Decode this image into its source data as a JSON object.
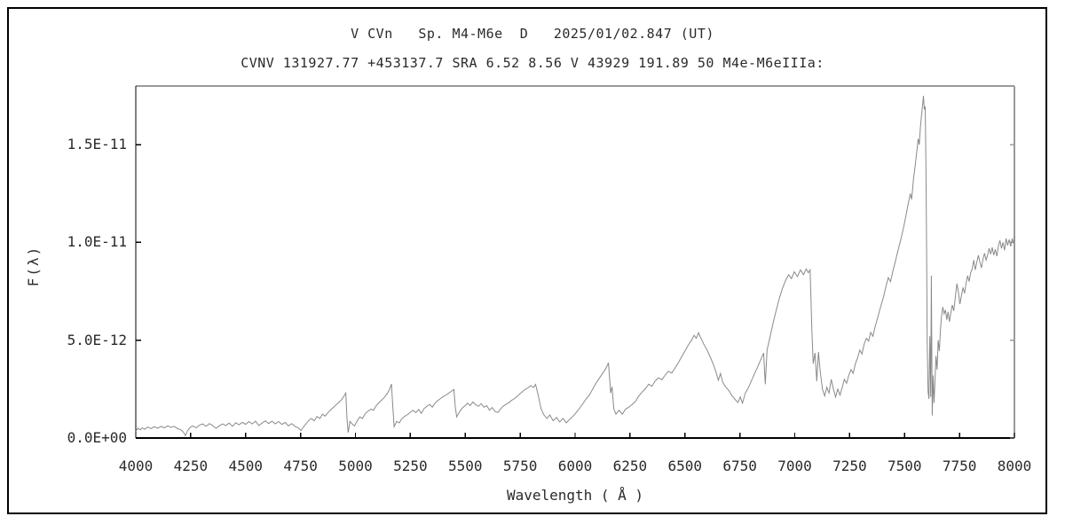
{
  "header": {
    "line1": "V CVn   Sp. M4-M6e  D   2025/01/02.847 (UT)",
    "line2": "CVNV 131927.77 +453137.7 SRA 6.52 8.56 V 43929 191.89 50 M4e-M6eIIIa:"
  },
  "colors": {
    "spectrum_line": "#8a8a8a",
    "axis_dark": "#000000",
    "axis_light": "#9a9a9a",
    "text": "#2a2a2a",
    "background": "#ffffff"
  },
  "chart_data": {
    "type": "line",
    "title": "V CVn   Sp. M4-M6e  D   2025/01/02.847 (UT)",
    "subtitle": "CVNV 131927.77 +453137.7 SRA 6.52 8.56 V 43929 191.89 50 M4e-M6eIIIa:",
    "xlabel": "Wavelength ( Å )",
    "ylabel": "F(λ)",
    "grid": false,
    "legend": "none",
    "xlim": [
      4000,
      8000
    ],
    "x_tick_step": 250,
    "x_ticks": [
      4000,
      4250,
      4500,
      4750,
      5000,
      5250,
      5500,
      5750,
      6000,
      6250,
      6500,
      6750,
      7000,
      7250,
      7500,
      7750,
      8000
    ],
    "y_ticks": [
      {
        "value_1e12": 0,
        "label": "0.0E+00"
      },
      {
        "value_1e12": 5,
        "label": "5.0E-12"
      },
      {
        "value_1e12": 10,
        "label": "1.0E-11"
      },
      {
        "value_1e12": 15,
        "label": "1.5E-11"
      }
    ],
    "ylim_1e12": [
      0,
      18
    ],
    "flux_unit_note": "flux values below are in units of 1e-12 (same scale as y-axis labels)",
    "points": [
      [
        4000,
        0.35
      ],
      [
        4010,
        0.5
      ],
      [
        4020,
        0.42
      ],
      [
        4030,
        0.52
      ],
      [
        4040,
        0.44
      ],
      [
        4055,
        0.56
      ],
      [
        4070,
        0.48
      ],
      [
        4085,
        0.58
      ],
      [
        4100,
        0.5
      ],
      [
        4115,
        0.6
      ],
      [
        4130,
        0.52
      ],
      [
        4145,
        0.62
      ],
      [
        4160,
        0.54
      ],
      [
        4175,
        0.6
      ],
      [
        4190,
        0.48
      ],
      [
        4205,
        0.42
      ],
      [
        4218,
        0.28
      ],
      [
        4226,
        0.12
      ],
      [
        4236,
        0.38
      ],
      [
        4248,
        0.55
      ],
      [
        4260,
        0.62
      ],
      [
        4275,
        0.52
      ],
      [
        4290,
        0.66
      ],
      [
        4305,
        0.72
      ],
      [
        4320,
        0.6
      ],
      [
        4335,
        0.74
      ],
      [
        4350,
        0.64
      ],
      [
        4365,
        0.5
      ],
      [
        4380,
        0.62
      ],
      [
        4395,
        0.72
      ],
      [
        4410,
        0.64
      ],
      [
        4425,
        0.76
      ],
      [
        4440,
        0.6
      ],
      [
        4455,
        0.78
      ],
      [
        4470,
        0.68
      ],
      [
        4485,
        0.8
      ],
      [
        4500,
        0.7
      ],
      [
        4515,
        0.84
      ],
      [
        4530,
        0.72
      ],
      [
        4545,
        0.86
      ],
      [
        4560,
        0.64
      ],
      [
        4575,
        0.76
      ],
      [
        4590,
        0.88
      ],
      [
        4605,
        0.74
      ],
      [
        4620,
        0.86
      ],
      [
        4635,
        0.72
      ],
      [
        4650,
        0.84
      ],
      [
        4665,
        0.7
      ],
      [
        4680,
        0.8
      ],
      [
        4695,
        0.62
      ],
      [
        4710,
        0.74
      ],
      [
        4725,
        0.6
      ],
      [
        4740,
        0.52
      ],
      [
        4752,
        0.38
      ],
      [
        4762,
        0.55
      ],
      [
        4775,
        0.72
      ],
      [
        4788,
        0.9
      ],
      [
        4800,
        1.0
      ],
      [
        4812,
        0.88
      ],
      [
        4825,
        1.1
      ],
      [
        4838,
        1.0
      ],
      [
        4850,
        1.22
      ],
      [
        4862,
        1.12
      ],
      [
        4875,
        1.3
      ],
      [
        4888,
        1.45
      ],
      [
        4900,
        1.58
      ],
      [
        4912,
        1.7
      ],
      [
        4925,
        1.82
      ],
      [
        4938,
        1.98
      ],
      [
        4948,
        2.15
      ],
      [
        4956,
        2.3
      ],
      [
        4962,
        0.9
      ],
      [
        4967,
        0.28
      ],
      [
        4975,
        0.85
      ],
      [
        4985,
        0.72
      ],
      [
        4996,
        0.62
      ],
      [
        5008,
        0.88
      ],
      [
        5020,
        1.08
      ],
      [
        5032,
        1.0
      ],
      [
        5045,
        1.25
      ],
      [
        5058,
        1.38
      ],
      [
        5070,
        1.48
      ],
      [
        5082,
        1.42
      ],
      [
        5095,
        1.66
      ],
      [
        5108,
        1.82
      ],
      [
        5120,
        1.95
      ],
      [
        5132,
        2.08
      ],
      [
        5145,
        2.28
      ],
      [
        5155,
        2.48
      ],
      [
        5164,
        2.76
      ],
      [
        5170,
        1.6
      ],
      [
        5176,
        0.58
      ],
      [
        5188,
        0.85
      ],
      [
        5200,
        0.78
      ],
      [
        5212,
        1.0
      ],
      [
        5225,
        1.12
      ],
      [
        5238,
        1.2
      ],
      [
        5250,
        1.32
      ],
      [
        5262,
        1.42
      ],
      [
        5275,
        1.3
      ],
      [
        5288,
        1.46
      ],
      [
        5300,
        1.26
      ],
      [
        5312,
        1.5
      ],
      [
        5325,
        1.62
      ],
      [
        5338,
        1.72
      ],
      [
        5350,
        1.58
      ],
      [
        5362,
        1.78
      ],
      [
        5375,
        1.92
      ],
      [
        5388,
        2.02
      ],
      [
        5400,
        2.12
      ],
      [
        5412,
        2.2
      ],
      [
        5425,
        2.3
      ],
      [
        5438,
        2.4
      ],
      [
        5448,
        2.48
      ],
      [
        5455,
        1.55
      ],
      [
        5461,
        1.08
      ],
      [
        5472,
        1.3
      ],
      [
        5485,
        1.52
      ],
      [
        5498,
        1.64
      ],
      [
        5510,
        1.78
      ],
      [
        5522,
        1.66
      ],
      [
        5535,
        1.84
      ],
      [
        5548,
        1.7
      ],
      [
        5560,
        1.62
      ],
      [
        5572,
        1.76
      ],
      [
        5585,
        1.58
      ],
      [
        5598,
        1.66
      ],
      [
        5610,
        1.42
      ],
      [
        5622,
        1.56
      ],
      [
        5635,
        1.36
      ],
      [
        5648,
        1.3
      ],
      [
        5660,
        1.48
      ],
      [
        5672,
        1.62
      ],
      [
        5685,
        1.72
      ],
      [
        5698,
        1.8
      ],
      [
        5710,
        1.92
      ],
      [
        5722,
        2.0
      ],
      [
        5735,
        2.12
      ],
      [
        5748,
        2.26
      ],
      [
        5760,
        2.36
      ],
      [
        5772,
        2.48
      ],
      [
        5785,
        2.56
      ],
      [
        5798,
        2.68
      ],
      [
        5810,
        2.58
      ],
      [
        5820,
        2.74
      ],
      [
        5832,
        2.2
      ],
      [
        5845,
        1.5
      ],
      [
        5858,
        1.18
      ],
      [
        5872,
        1.0
      ],
      [
        5885,
        1.18
      ],
      [
        5900,
        0.88
      ],
      [
        5915,
        1.05
      ],
      [
        5930,
        0.82
      ],
      [
        5945,
        1.0
      ],
      [
        5960,
        0.78
      ],
      [
        5975,
        0.95
      ],
      [
        5990,
        1.1
      ],
      [
        6005,
        1.3
      ],
      [
        6020,
        1.52
      ],
      [
        6035,
        1.75
      ],
      [
        6050,
        2.0
      ],
      [
        6065,
        2.2
      ],
      [
        6080,
        2.5
      ],
      [
        6095,
        2.8
      ],
      [
        6110,
        3.05
      ],
      [
        6125,
        3.3
      ],
      [
        6140,
        3.55
      ],
      [
        6152,
        3.85
      ],
      [
        6162,
        2.3
      ],
      [
        6168,
        2.62
      ],
      [
        6176,
        1.5
      ],
      [
        6186,
        1.22
      ],
      [
        6200,
        1.42
      ],
      [
        6215,
        1.22
      ],
      [
        6230,
        1.48
      ],
      [
        6245,
        1.58
      ],
      [
        6260,
        1.72
      ],
      [
        6275,
        1.88
      ],
      [
        6290,
        2.15
      ],
      [
        6305,
        2.35
      ],
      [
        6320,
        2.52
      ],
      [
        6335,
        2.75
      ],
      [
        6350,
        2.65
      ],
      [
        6365,
        2.92
      ],
      [
        6380,
        3.08
      ],
      [
        6395,
        2.98
      ],
      [
        6410,
        3.22
      ],
      [
        6425,
        3.42
      ],
      [
        6440,
        3.32
      ],
      [
        6455,
        3.58
      ],
      [
        6470,
        3.85
      ],
      [
        6485,
        4.15
      ],
      [
        6500,
        4.45
      ],
      [
        6515,
        4.75
      ],
      [
        6530,
        5.0
      ],
      [
        6542,
        5.25
      ],
      [
        6552,
        5.1
      ],
      [
        6562,
        5.38
      ],
      [
        6575,
        5.05
      ],
      [
        6588,
        4.75
      ],
      [
        6600,
        4.52
      ],
      [
        6615,
        4.15
      ],
      [
        6630,
        3.75
      ],
      [
        6642,
        3.35
      ],
      [
        6652,
        2.95
      ],
      [
        6662,
        3.3
      ],
      [
        6672,
        2.85
      ],
      [
        6685,
        2.62
      ],
      [
        6700,
        2.42
      ],
      [
        6715,
        2.15
      ],
      [
        6730,
        1.95
      ],
      [
        6742,
        1.82
      ],
      [
        6752,
        2.1
      ],
      [
        6762,
        1.78
      ],
      [
        6775,
        2.3
      ],
      [
        6788,
        2.55
      ],
      [
        6800,
        2.85
      ],
      [
        6815,
        3.25
      ],
      [
        6830,
        3.6
      ],
      [
        6845,
        4.0
      ],
      [
        6858,
        4.35
      ],
      [
        6866,
        2.75
      ],
      [
        6874,
        4.5
      ],
      [
        6888,
        5.2
      ],
      [
        6902,
        5.9
      ],
      [
        6916,
        6.55
      ],
      [
        6930,
        7.15
      ],
      [
        6944,
        7.65
      ],
      [
        6958,
        8.05
      ],
      [
        6972,
        8.35
      ],
      [
        6985,
        8.15
      ],
      [
        6998,
        8.5
      ],
      [
        7012,
        8.25
      ],
      [
        7026,
        8.6
      ],
      [
        7040,
        8.35
      ],
      [
        7052,
        8.65
      ],
      [
        7062,
        8.45
      ],
      [
        7070,
        8.6
      ],
      [
        7078,
        5.5
      ],
      [
        7084,
        3.8
      ],
      [
        7092,
        4.35
      ],
      [
        7100,
        2.9
      ],
      [
        7108,
        4.4
      ],
      [
        7116,
        3.4
      ],
      [
        7126,
        2.5
      ],
      [
        7136,
        2.15
      ],
      [
        7146,
        2.6
      ],
      [
        7156,
        2.3
      ],
      [
        7166,
        3.0
      ],
      [
        7176,
        2.5
      ],
      [
        7186,
        2.1
      ],
      [
        7196,
        2.5
      ],
      [
        7206,
        2.2
      ],
      [
        7216,
        2.6
      ],
      [
        7226,
        3.0
      ],
      [
        7236,
        2.8
      ],
      [
        7246,
        3.2
      ],
      [
        7256,
        3.5
      ],
      [
        7266,
        3.3
      ],
      [
        7276,
        3.8
      ],
      [
        7286,
        4.1
      ],
      [
        7296,
        4.5
      ],
      [
        7306,
        4.3
      ],
      [
        7316,
        4.8
      ],
      [
        7326,
        5.1
      ],
      [
        7336,
        4.95
      ],
      [
        7346,
        5.4
      ],
      [
        7356,
        5.2
      ],
      [
        7366,
        5.7
      ],
      [
        7376,
        6.1
      ],
      [
        7386,
        6.5
      ],
      [
        7396,
        6.9
      ],
      [
        7406,
        7.3
      ],
      [
        7416,
        7.8
      ],
      [
        7426,
        8.2
      ],
      [
        7436,
        8.0
      ],
      [
        7446,
        8.5
      ],
      [
        7456,
        8.95
      ],
      [
        7466,
        9.4
      ],
      [
        7476,
        9.85
      ],
      [
        7486,
        10.3
      ],
      [
        7496,
        10.8
      ],
      [
        7506,
        11.35
      ],
      [
        7516,
        11.95
      ],
      [
        7526,
        12.5
      ],
      [
        7532,
        12.2
      ],
      [
        7540,
        13.2
      ],
      [
        7548,
        13.9
      ],
      [
        7556,
        14.7
      ],
      [
        7562,
        15.3
      ],
      [
        7567,
        15.0
      ],
      [
        7572,
        15.9
      ],
      [
        7577,
        16.5
      ],
      [
        7582,
        17.0
      ],
      [
        7586,
        17.5
      ],
      [
        7590,
        16.8
      ],
      [
        7594,
        16.95
      ],
      [
        7597,
        14.0
      ],
      [
        7600,
        10.0
      ],
      [
        7603,
        5.0
      ],
      [
        7607,
        2.4
      ],
      [
        7611,
        2.0
      ],
      [
        7615,
        5.2
      ],
      [
        7619,
        2.1
      ],
      [
        7622,
        8.3
      ],
      [
        7626,
        1.15
      ],
      [
        7630,
        3.2
      ],
      [
        7634,
        1.8
      ],
      [
        7638,
        2.8
      ],
      [
        7643,
        4.2
      ],
      [
        7648,
        3.5
      ],
      [
        7653,
        5.0
      ],
      [
        7658,
        4.45
      ],
      [
        7663,
        5.5
      ],
      [
        7668,
        6.2
      ],
      [
        7674,
        6.7
      ],
      [
        7680,
        6.35
      ],
      [
        7686,
        6.55
      ],
      [
        7692,
        6.05
      ],
      [
        7698,
        6.45
      ],
      [
        7704,
        5.95
      ],
      [
        7710,
        6.35
      ],
      [
        7717,
        6.8
      ],
      [
        7724,
        6.5
      ],
      [
        7731,
        7.2
      ],
      [
        7738,
        7.9
      ],
      [
        7745,
        7.45
      ],
      [
        7752,
        6.85
      ],
      [
        7759,
        7.3
      ],
      [
        7766,
        7.7
      ],
      [
        7773,
        7.4
      ],
      [
        7780,
        7.9
      ],
      [
        7787,
        8.3
      ],
      [
        7794,
        8.0
      ],
      [
        7801,
        8.45
      ],
      [
        7808,
        8.65
      ],
      [
        7815,
        9.1
      ],
      [
        7822,
        8.6
      ],
      [
        7829,
        9.0
      ],
      [
        7836,
        9.35
      ],
      [
        7843,
        9.0
      ],
      [
        7850,
        8.7
      ],
      [
        7857,
        9.15
      ],
      [
        7864,
        9.45
      ],
      [
        7871,
        9.1
      ],
      [
        7878,
        9.35
      ],
      [
        7885,
        9.7
      ],
      [
        7892,
        9.4
      ],
      [
        7899,
        9.75
      ],
      [
        7906,
        9.35
      ],
      [
        7913,
        9.65
      ],
      [
        7920,
        9.3
      ],
      [
        7927,
        9.8
      ],
      [
        7934,
        10.1
      ],
      [
        7941,
        9.7
      ],
      [
        7948,
        10.0
      ],
      [
        7955,
        9.6
      ],
      [
        7962,
        10.2
      ],
      [
        7969,
        9.85
      ],
      [
        7976,
        10.15
      ],
      [
        7983,
        9.8
      ],
      [
        7990,
        10.2
      ],
      [
        7996,
        9.95
      ],
      [
        8000,
        10.3
      ]
    ]
  }
}
